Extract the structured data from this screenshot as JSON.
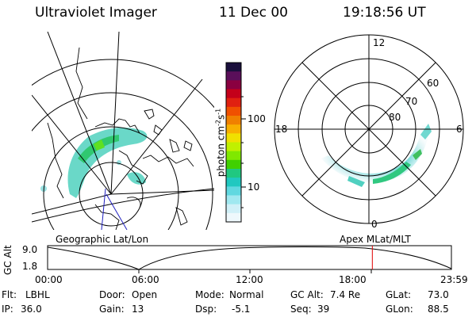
{
  "header": {
    "instrument": "Ultraviolet Imager",
    "date": "11 Dec 00",
    "time": "19:18:56 UT"
  },
  "panels": {
    "left_label": "Geographic Lat/Lon",
    "right_label": "Apex MLat/MLT"
  },
  "polar_plot": {
    "mlt_labels": {
      "top": "12",
      "left": "18",
      "right": "6",
      "bottom": "0"
    },
    "lat_labels": [
      "60",
      "70",
      "80"
    ]
  },
  "colorbar": {
    "unit_label": "photon cm",
    "unit_sup1": "-2",
    "unit_mid": "s",
    "unit_sup2": "-1",
    "ticks": [
      "100",
      "10"
    ],
    "colors": [
      "#1a0f3c",
      "#5a0f5a",
      "#8a0040",
      "#c4001a",
      "#e02010",
      "#f05000",
      "#f08000",
      "#f8b000",
      "#f0e000",
      "#c0f000",
      "#80e800",
      "#40d000",
      "#20c880",
      "#20c8c0",
      "#60d8e0",
      "#a0e8f0",
      "#d0f0f8",
      "#eef8fc"
    ]
  },
  "altitude_plot": {
    "ylabel": "GC Alt",
    "yticks": [
      "9.0",
      "1.8"
    ],
    "xticks": [
      "00:00",
      "06:00",
      "12:00",
      "18:00",
      "23:59"
    ],
    "current_marker_hour": 19.3
  },
  "info": {
    "filter_label": "Flt:",
    "filter_value": "LBHL",
    "door_label": "Door:",
    "door_value": "Open",
    "mode_label": "Mode:",
    "mode_value": "Normal",
    "gcalt_label": "GC Alt:",
    "gcalt_value": "7.4 Re",
    "glat_label": "GLat:",
    "glat_value": "73.0",
    "ip_label": "IP:",
    "ip_value": "36.0",
    "gain_label": "Gain:",
    "gain_value": "13",
    "dsp_label": "Dsp:",
    "dsp_value": "-5.1",
    "seq_label": "Seq:",
    "seq_value": "39",
    "glon_label": "GLon:",
    "glon_value": "88.5"
  }
}
